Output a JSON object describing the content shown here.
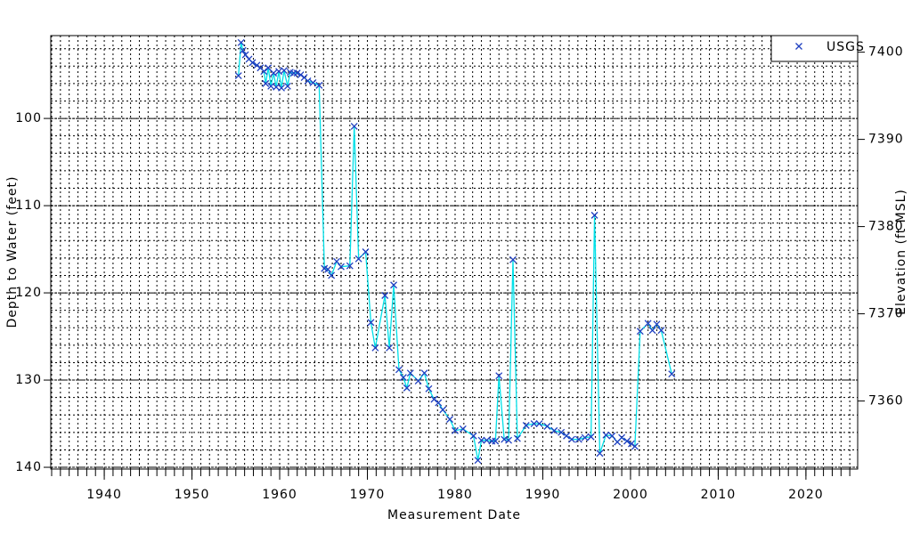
{
  "chart_data": {
    "type": "line",
    "y_label": "Depth to Water (feet)",
    "y2_label": "Elevation (ft MSL)",
    "x_label": "Measurement Date",
    "xlim": [
      1933.9,
      2025.9
    ],
    "xticks": [
      1940,
      1950,
      1960,
      1970,
      1980,
      1990,
      2000,
      2010,
      2020
    ],
    "xminorticks": [
      1934,
      1935,
      1936,
      1937,
      1938,
      1939,
      1940,
      1941,
      1942,
      1943,
      1944,
      1945,
      1946,
      1947,
      1948,
      1949,
      1950,
      1951,
      1952,
      1953,
      1954,
      1955,
      1956,
      1957,
      1958,
      1959,
      1960,
      1961,
      1962,
      1963,
      1964,
      1965,
      1966,
      1967,
      1968,
      1969,
      1970,
      1971,
      1972,
      1973,
      1974,
      1975,
      1976,
      1977,
      1978,
      1979,
      1980,
      1981,
      1982,
      1983,
      1984,
      1985,
      1986,
      1987,
      1988,
      1989,
      1990,
      1991,
      1992,
      1993,
      1994,
      1995,
      1996,
      1997,
      1998,
      1999,
      2000,
      2001,
      2002,
      2003,
      2004,
      2005,
      2006,
      2007,
      2008,
      2009,
      2010,
      2011,
      2012,
      2013,
      2014,
      2015,
      2016,
      2017,
      2018,
      2019,
      2020,
      2021,
      2022,
      2023,
      2024,
      2025
    ],
    "ylim": [
      90.5,
      140.2
    ],
    "y_inverted": true,
    "yticks": [
      100,
      110,
      120,
      130,
      140
    ],
    "yminorticks": [
      92,
      94,
      96,
      98,
      100,
      102,
      104,
      106,
      108,
      110,
      112,
      114,
      116,
      118,
      120,
      122,
      124,
      126,
      128,
      130,
      132,
      134,
      136,
      138,
      140
    ],
    "y2lim": [
      7352.2,
      7401.9
    ],
    "y2ticks": [
      7360,
      7370,
      7380,
      7390,
      7400
    ],
    "grid": true,
    "legend": "top-right",
    "series": [
      {
        "name": "USGS",
        "color": "#00e0e8",
        "marker_color": "#1f3fc0",
        "x": [
          1955.3,
          1955.6,
          1955.8,
          1956.1,
          1956.5,
          1956.9,
          1957.4,
          1957.8,
          1958.2,
          1958.4,
          1958.7,
          1959.0,
          1959.3,
          1959.6,
          1959.9,
          1960.2,
          1960.5,
          1960.9,
          1961.2,
          1961.6,
          1962.0,
          1962.4,
          1962.8,
          1963.2,
          1963.8,
          1964.5,
          1965.1,
          1965.5,
          1965.9,
          1966.5,
          1967.0,
          1968.0,
          1968.5,
          1969.0,
          1969.8,
          1970.4,
          1970.9,
          1972.0,
          1972.5,
          1973.0,
          1973.6,
          1974.1,
          1974.5,
          1974.9,
          1975.8,
          1976.5,
          1977.0,
          1977.6,
          1978.1,
          1978.6,
          1979.4,
          1980.0,
          1980.9,
          1982.1,
          1982.6,
          1983.0,
          1983.6,
          1984.2,
          1984.6,
          1985.0,
          1985.6,
          1986.1,
          1986.6,
          1987.1,
          1988.1,
          1989.0,
          1989.6,
          1990.5,
          1991.3,
          1992.1,
          1992.7,
          1993.3,
          1994.1,
          1994.8,
          1995.5,
          1995.9,
          1996.5,
          1997.2,
          1997.9,
          1998.5,
          1999.0,
          1999.6,
          2000.1,
          2000.5,
          2001.1,
          2002.0,
          2002.5,
          2003.0,
          2003.5,
          2004.7
        ],
        "values": [
          95.1,
          91.3,
          92.2,
          92.7,
          93.2,
          93.6,
          93.9,
          94.2,
          94.6,
          96.0,
          94.2,
          96.3,
          94.8,
          96.4,
          94.6,
          96.5,
          94.5,
          96.3,
          94.7,
          94.8,
          94.8,
          95.0,
          95.3,
          95.7,
          95.9,
          96.2,
          117.2,
          117.3,
          118.0,
          116.4,
          117.0,
          116.9,
          100.9,
          116.1,
          115.3,
          123.4,
          126.3,
          120.3,
          126.3,
          119.1,
          128.8,
          129.7,
          130.9,
          129.2,
          130.1,
          129.2,
          131.0,
          132.2,
          132.6,
          133.4,
          134.5,
          135.8,
          135.6,
          136.4,
          139.2,
          136.9,
          136.9,
          137.0,
          137.0,
          129.5,
          136.8,
          136.9,
          116.2,
          136.7,
          135.2,
          135.0,
          135.0,
          135.3,
          135.8,
          136.0,
          136.4,
          136.8,
          136.8,
          136.6,
          136.5,
          111.1,
          138.4,
          136.3,
          136.4,
          137.1,
          136.6,
          137.0,
          137.3,
          137.6,
          124.4,
          123.5,
          124.3,
          123.6,
          124.3,
          129.3
        ]
      }
    ]
  }
}
